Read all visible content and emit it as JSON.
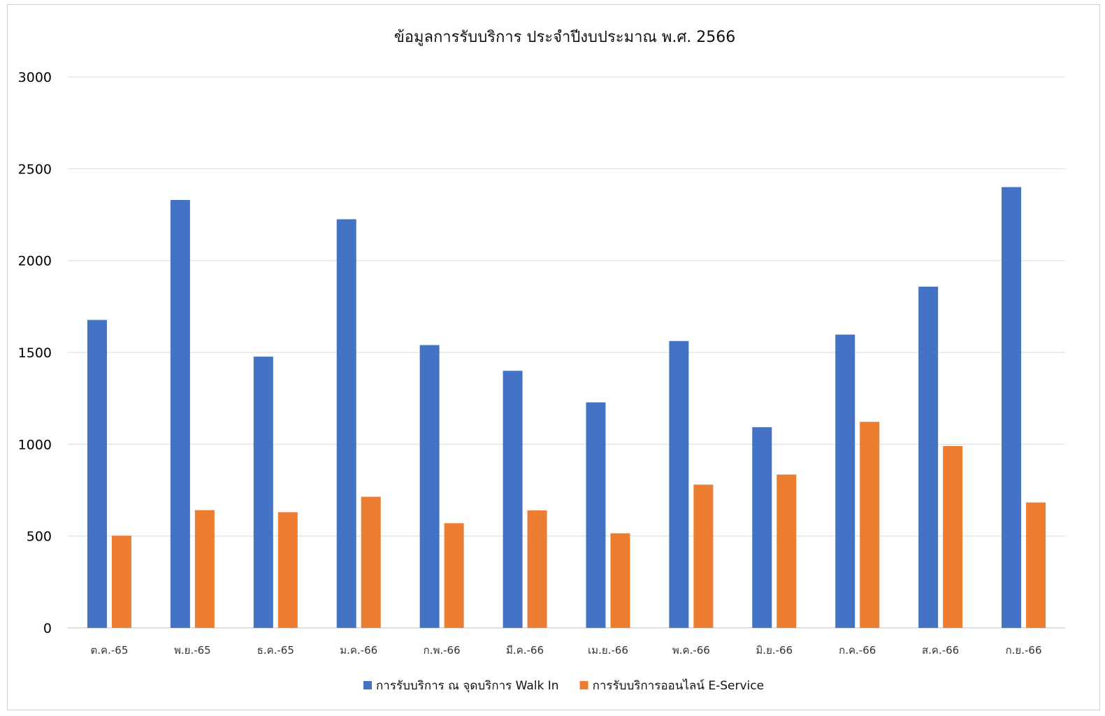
{
  "chart_data": {
    "type": "bar",
    "title": "ข้อมูลการรับบริการ ประจำปีงบประมาณ พ.ศ. 2566",
    "xlabel": "",
    "ylabel": "",
    "categories": [
      "ต.ค.-65",
      "พ.ย.-65",
      "ธ.ค.-65",
      "ม.ค.-66",
      "ก.พ.-66",
      "มี.ค.-66",
      "เม.ย.-66",
      "พ.ค.-66",
      "มิ.ย.-66",
      "ก.ค.-66",
      "ส.ค.-66",
      "ก.ย.-66"
    ],
    "series": [
      {
        "name": "การรับบริการ ณ จุดบริการ Walk In",
        "color": "#4472C4",
        "values": [
          1677,
          2330,
          1477,
          2225,
          1540,
          1400,
          1228,
          1562,
          1093,
          1597,
          1858,
          2400
        ]
      },
      {
        "name": "การรับบริการออนไลน์ E-Service",
        "color": "#ED7D31",
        "values": [
          502,
          641,
          630,
          714,
          570,
          640,
          515,
          780,
          835,
          1122,
          990,
          683
        ]
      }
    ],
    "ylim": [
      0,
      3000
    ],
    "yticks": [
      0,
      500,
      1000,
      1500,
      2000,
      2500,
      3000
    ],
    "grid": true,
    "legend_position": "bottom"
  }
}
